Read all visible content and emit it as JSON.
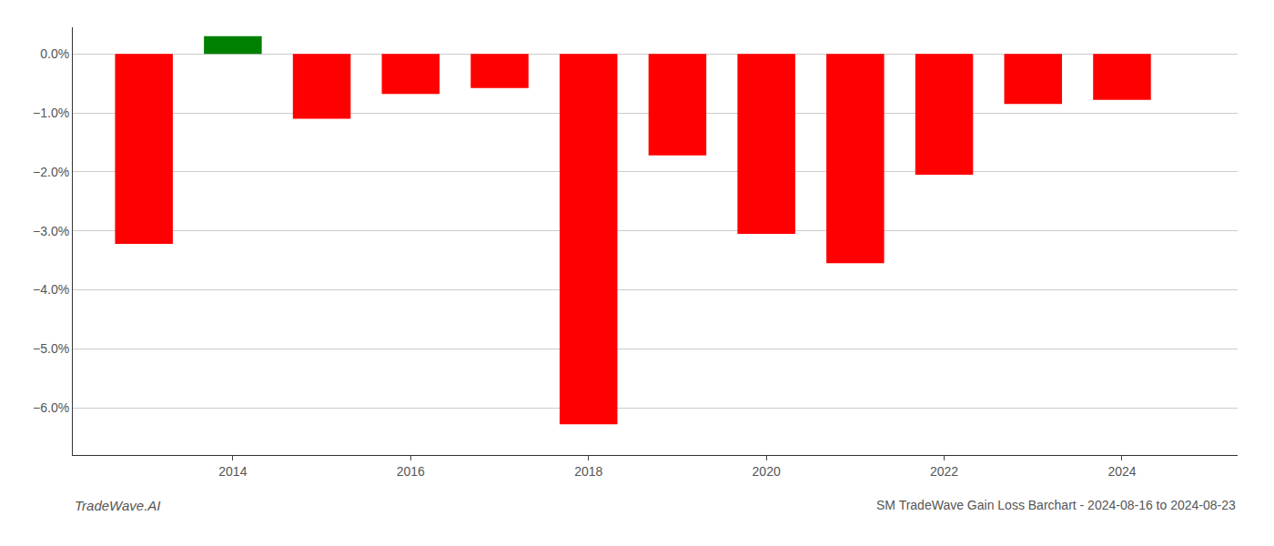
{
  "chart_data": {
    "type": "bar",
    "title": "SM TradeWave Gain Loss Barchart - 2024-08-16 to 2024-08-23",
    "annotations": [
      "TradeWave.AI"
    ],
    "x": [
      2013,
      2014,
      2015,
      2016,
      2017,
      2018,
      2019,
      2020,
      2021,
      2022,
      2023,
      2024
    ],
    "values": [
      -3.22,
      0.3,
      -1.1,
      -0.68,
      -0.58,
      -6.28,
      -1.72,
      -3.05,
      -3.55,
      -2.05,
      -0.85,
      -0.78
    ],
    "colors": [
      "#ff0000",
      "#008000",
      "#ff0000",
      "#ff0000",
      "#ff0000",
      "#ff0000",
      "#ff0000",
      "#ff0000",
      "#ff0000",
      "#ff0000",
      "#ff0000",
      "#ff0000"
    ],
    "xlim": [
      2012.2,
      2025.3
    ],
    "xticks": [
      2014,
      2016,
      2018,
      2020,
      2022,
      2024
    ],
    "ylim": [
      -6.8,
      0.45
    ],
    "yticks": [
      {
        "value": 0.0,
        "label": "0.0%"
      },
      {
        "value": -1.0,
        "label": "−1.0%"
      },
      {
        "value": -2.0,
        "label": "−2.0%"
      },
      {
        "value": -3.0,
        "label": "−3.0%"
      },
      {
        "value": -4.0,
        "label": "−4.0%"
      },
      {
        "value": -5.0,
        "label": "−5.0%"
      },
      {
        "value": -6.0,
        "label": "−6.0%"
      }
    ],
    "grid": true
  }
}
